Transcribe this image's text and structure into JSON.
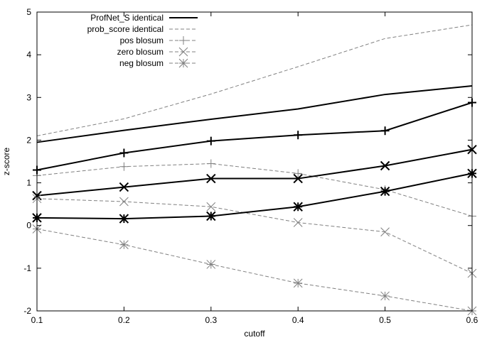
{
  "chart_data": {
    "type": "line",
    "xlabel": "cutoff",
    "ylabel": "z-score",
    "xlim": [
      0.1,
      0.6
    ],
    "ylim": [
      -2,
      5
    ],
    "x_ticks": [
      "0.1",
      "0.2",
      "0.3",
      "0.4",
      "0.5",
      "0.6"
    ],
    "y_ticks": [
      "-2",
      "-1",
      "0",
      "1",
      "2",
      "3",
      "4",
      "5"
    ],
    "grid": false,
    "legend_position": "top-left",
    "x": [
      0.1,
      0.2,
      0.3,
      0.4,
      0.5,
      0.6
    ],
    "series": [
      {
        "name": "ProfNet_S identical",
        "line": "solid",
        "weight": "bold",
        "marker": "none",
        "values": [
          1.95,
          2.23,
          2.49,
          2.73,
          3.07,
          3.27
        ]
      },
      {
        "name": "prob_score identical",
        "line": "dashed",
        "weight": "thin",
        "marker": "none",
        "values": [
          2.1,
          2.5,
          3.08,
          3.72,
          4.38,
          4.7
        ]
      },
      {
        "name": "pos blosum",
        "line": "solid",
        "weight": "bold",
        "marker": "plus",
        "values": [
          1.3,
          1.7,
          1.98,
          2.12,
          2.22,
          2.88
        ]
      },
      {
        "name": "pos blosum",
        "line": "dashed",
        "weight": "thin",
        "marker": "plus",
        "values": [
          1.17,
          1.38,
          1.45,
          1.22,
          0.84,
          0.22
        ]
      },
      {
        "name": "zero blosum",
        "line": "solid",
        "weight": "bold",
        "marker": "cross",
        "values": [
          0.7,
          0.9,
          1.1,
          1.1,
          1.4,
          1.78
        ]
      },
      {
        "name": "zero blosum",
        "line": "dashed",
        "weight": "thin",
        "marker": "cross",
        "values": [
          0.63,
          0.56,
          0.44,
          0.07,
          -0.15,
          -1.12
        ]
      },
      {
        "name": "neg blosum",
        "line": "solid",
        "weight": "bold",
        "marker": "star",
        "values": [
          0.18,
          0.16,
          0.22,
          0.44,
          0.8,
          1.22
        ]
      },
      {
        "name": "neg blosum",
        "line": "dashed",
        "weight": "thin",
        "marker": "star",
        "values": [
          -0.08,
          -0.45,
          -0.91,
          -1.35,
          -1.65,
          -2.0
        ]
      }
    ],
    "legend": [
      {
        "label": "ProfNet_S identical",
        "line": "solid",
        "weight": "bold",
        "marker": "none"
      },
      {
        "label": "prob_score identical",
        "line": "dashed",
        "weight": "thin",
        "marker": "none"
      },
      {
        "label": "pos blosum",
        "line": "dashed",
        "weight": "thin",
        "marker": "plus"
      },
      {
        "label": "zero blosum",
        "line": "dashed",
        "weight": "thin",
        "marker": "cross"
      },
      {
        "label": "neg blosum",
        "line": "dashed",
        "weight": "thin",
        "marker": "star"
      }
    ]
  }
}
